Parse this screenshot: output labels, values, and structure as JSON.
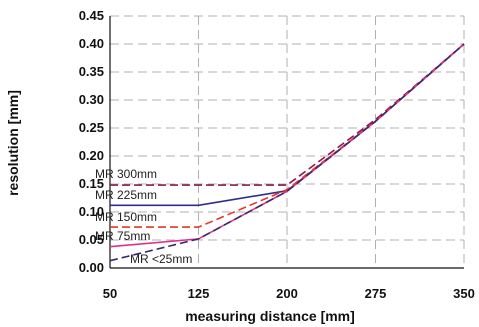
{
  "chart_data": {
    "type": "line",
    "xlabel": "measuring distance [mm]",
    "ylabel": "resolution [mm]",
    "xlim": [
      50,
      350
    ],
    "ylim": [
      0,
      0.45
    ],
    "xticks": [
      "50",
      "125",
      "200",
      "275",
      "350"
    ],
    "yticks": [
      "0.00",
      "0.05",
      "0.10",
      "0.15",
      "0.20",
      "0.25",
      "0.30",
      "0.35",
      "0.40",
      "0.45"
    ],
    "grid": true,
    "series": [
      {
        "name": "MR 300mm",
        "color": "#8b1a4a",
        "style": "dashed",
        "x": [
          50,
          125,
          200,
          275,
          350
        ],
        "y": [
          0.148,
          0.148,
          0.148,
          0.265,
          0.4
        ]
      },
      {
        "name": "MR 225mm",
        "color": "#2e2e8a",
        "style": "solid",
        "x": [
          50,
          125,
          200,
          275,
          350
        ],
        "y": [
          0.112,
          0.112,
          0.138,
          0.262,
          0.4
        ]
      },
      {
        "name": "MR 150mm",
        "color": "#e23a2a",
        "style": "dashed",
        "x": [
          50,
          125,
          200,
          275,
          350
        ],
        "y": [
          0.073,
          0.073,
          0.14,
          0.262,
          0.4
        ]
      },
      {
        "name": "MR 75mm",
        "color": "#e0308a",
        "style": "solid",
        "x": [
          50,
          125,
          200,
          275,
          350
        ],
        "y": [
          0.038,
          0.052,
          0.137,
          0.262,
          0.4
        ]
      },
      {
        "name": "MR <25mm",
        "color": "#3a2a6a",
        "style": "dashed",
        "x": [
          50,
          125,
          200,
          275,
          350
        ],
        "y": [
          0.013,
          0.052,
          0.137,
          0.262,
          0.4
        ]
      }
    ]
  }
}
